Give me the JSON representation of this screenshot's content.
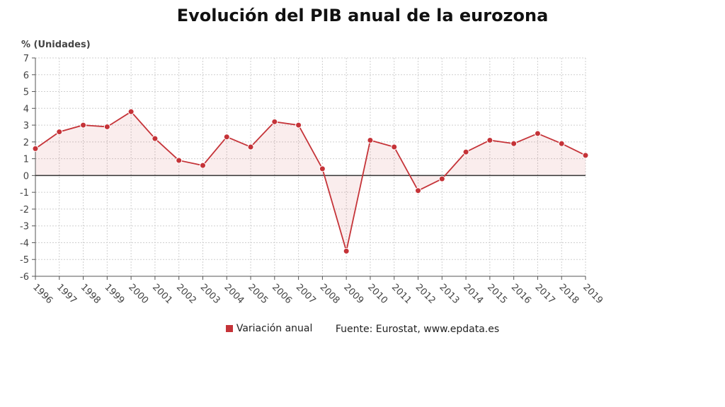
{
  "title": "Evolución del PIB anual de la eurozona",
  "legend": {
    "label": "Variación anual",
    "color": "#c53338"
  },
  "source": "Fuente: Eurostat, www.epdata.es",
  "chart_data": {
    "type": "area",
    "ylabel": "% (Unidades)",
    "xlabel": "",
    "ylim": [
      -6,
      7
    ],
    "yticks": [
      -6,
      -5,
      -4,
      -3,
      -2,
      -1,
      0,
      1,
      2,
      3,
      4,
      5,
      6,
      7
    ],
    "grid": true,
    "legend_position": "bottom",
    "categories": [
      "1996",
      "1997",
      "1998",
      "1999",
      "2000",
      "2001",
      "2002",
      "2003",
      "2004",
      "2005",
      "2006",
      "2007",
      "2008",
      "2009",
      "2010",
      "2011",
      "2012",
      "2013",
      "2014",
      "2015",
      "2016",
      "2017",
      "2018",
      "2019"
    ],
    "series": [
      {
        "name": "Variación anual",
        "values": [
          1.6,
          2.6,
          3.0,
          2.9,
          3.8,
          2.2,
          0.9,
          0.6,
          2.3,
          1.7,
          3.2,
          3.0,
          0.4,
          -4.5,
          2.1,
          1.7,
          -0.9,
          -0.2,
          1.4,
          2.1,
          1.9,
          2.5,
          1.9,
          1.2
        ]
      }
    ]
  }
}
